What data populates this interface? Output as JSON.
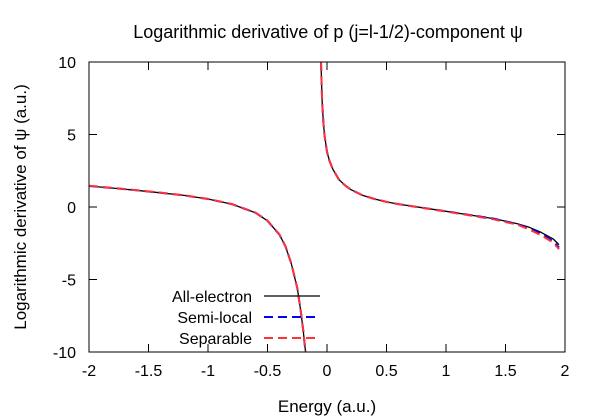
{
  "chart_data": {
    "type": "line",
    "title": "Logarithmic derivative of p (j=l-1/2)-component ψ",
    "xlabel": "Energy (a.u.)",
    "ylabel": "Logarithmic derivative of ψ (a.u.)",
    "xlim": [
      -2,
      2
    ],
    "ylim": [
      -10,
      10
    ],
    "xticks": [
      -2,
      -1.5,
      -1,
      -0.5,
      0,
      0.5,
      1,
      1.5,
      2
    ],
    "xtick_labels": [
      "-2",
      "-1.5",
      "-1",
      "-0.5",
      "0",
      "0.5",
      "1",
      "1.5",
      "2"
    ],
    "yticks": [
      -10,
      -5,
      0,
      5,
      10
    ],
    "ytick_labels": [
      "-10",
      "-5",
      "0",
      "5",
      "10"
    ],
    "grid": false,
    "legend_position": "bottom-left",
    "series": [
      {
        "name": "All-electron",
        "color": "#000000",
        "dash": "solid",
        "segments": [
          {
            "x": [
              -2.0,
              -1.8,
              -1.6,
              -1.4,
              -1.2,
              -1.0,
              -0.8,
              -0.6,
              -0.5,
              -0.4,
              -0.35,
              -0.3,
              -0.25,
              -0.22,
              -0.2,
              -0.19,
              -0.18
            ],
            "y": [
              1.45,
              1.3,
              1.15,
              0.98,
              0.8,
              0.55,
              0.2,
              -0.4,
              -0.95,
              -1.9,
              -2.7,
              -3.9,
              -5.6,
              -7.2,
              -8.5,
              -9.3,
              -10.0
            ]
          },
          {
            "x": [
              -0.05,
              -0.045,
              -0.04,
              -0.03,
              -0.02,
              0.0,
              0.02,
              0.05,
              0.1,
              0.15,
              0.2,
              0.3,
              0.4,
              0.5,
              0.6,
              0.8,
              1.0,
              1.2,
              1.4,
              1.6,
              1.7,
              1.8,
              1.9,
              1.95
            ],
            "y": [
              10.0,
              8.5,
              7.2,
              5.8,
              4.9,
              3.8,
              3.2,
              2.6,
              1.9,
              1.5,
              1.2,
              0.8,
              0.55,
              0.35,
              0.2,
              -0.05,
              -0.3,
              -0.55,
              -0.8,
              -1.15,
              -1.4,
              -1.75,
              -2.2,
              -2.6
            ]
          }
        ]
      },
      {
        "name": "Semi-local",
        "color": "#0000ff",
        "dash": "dashed",
        "segments": [
          {
            "x": [
              -2.0,
              -1.8,
              -1.6,
              -1.4,
              -1.2,
              -1.0,
              -0.8,
              -0.6,
              -0.5,
              -0.4,
              -0.35,
              -0.3,
              -0.25,
              -0.22,
              -0.2,
              -0.19,
              -0.18
            ],
            "y": [
              1.45,
              1.3,
              1.15,
              0.98,
              0.8,
              0.55,
              0.2,
              -0.4,
              -0.95,
              -1.9,
              -2.7,
              -3.9,
              -5.6,
              -7.2,
              -8.5,
              -9.3,
              -10.0
            ]
          },
          {
            "x": [
              -0.05,
              -0.045,
              -0.04,
              -0.03,
              -0.02,
              0.0,
              0.02,
              0.05,
              0.1,
              0.15,
              0.2,
              0.3,
              0.4,
              0.5,
              0.6,
              0.8,
              1.0,
              1.2,
              1.4,
              1.6,
              1.7,
              1.8,
              1.9,
              1.95
            ],
            "y": [
              10.0,
              8.5,
              7.2,
              5.8,
              4.9,
              3.8,
              3.2,
              2.6,
              1.9,
              1.5,
              1.2,
              0.8,
              0.55,
              0.35,
              0.2,
              -0.05,
              -0.3,
              -0.55,
              -0.8,
              -1.18,
              -1.48,
              -1.85,
              -2.35,
              -2.8
            ]
          }
        ]
      },
      {
        "name": "Separable",
        "color": "#ff3333",
        "dash": "dashed",
        "segments": [
          {
            "x": [
              -2.0,
              -1.8,
              -1.6,
              -1.4,
              -1.2,
              -1.0,
              -0.8,
              -0.6,
              -0.5,
              -0.4,
              -0.35,
              -0.3,
              -0.25,
              -0.22,
              -0.2,
              -0.19,
              -0.18
            ],
            "y": [
              1.47,
              1.32,
              1.16,
              0.99,
              0.81,
              0.56,
              0.21,
              -0.39,
              -0.94,
              -1.88,
              -2.68,
              -3.88,
              -5.58,
              -7.18,
              -8.48,
              -9.28,
              -10.0
            ]
          },
          {
            "x": [
              -0.05,
              -0.045,
              -0.04,
              -0.03,
              -0.02,
              0.0,
              0.02,
              0.05,
              0.1,
              0.15,
              0.2,
              0.3,
              0.4,
              0.5,
              0.6,
              0.8,
              1.0,
              1.2,
              1.4,
              1.6,
              1.7,
              1.8,
              1.9,
              1.95
            ],
            "y": [
              10.0,
              8.5,
              7.2,
              5.8,
              4.9,
              3.8,
              3.2,
              2.6,
              1.9,
              1.5,
              1.2,
              0.8,
              0.55,
              0.35,
              0.2,
              -0.06,
              -0.32,
              -0.58,
              -0.85,
              -1.22,
              -1.55,
              -1.95,
              -2.45,
              -2.9
            ]
          }
        ]
      }
    ]
  }
}
